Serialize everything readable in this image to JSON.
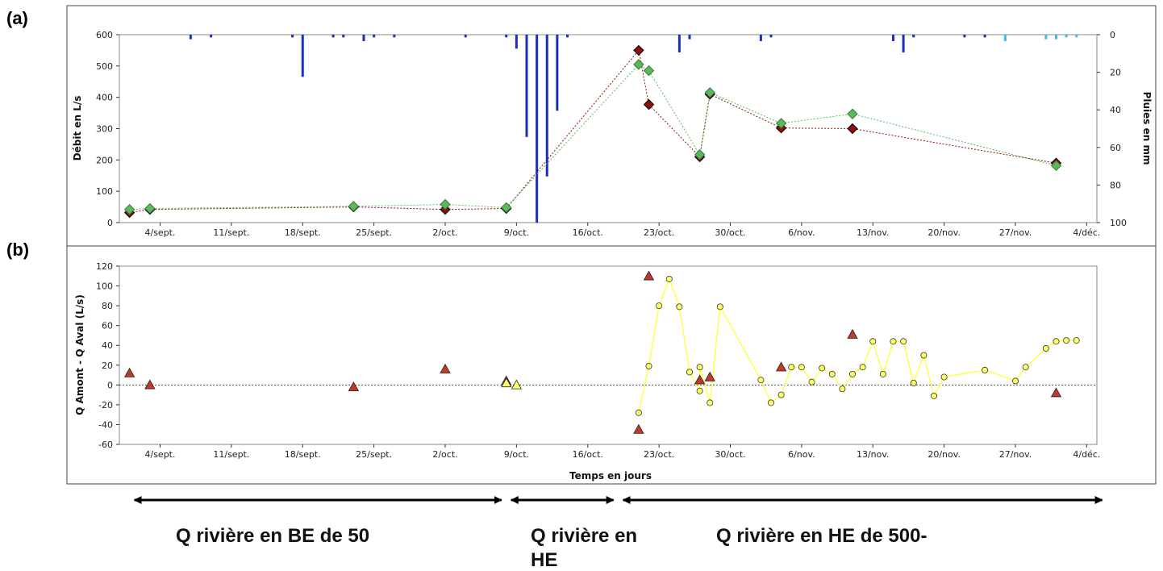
{
  "panel_labels": {
    "a": "(a)",
    "b": "(b)"
  },
  "chart_data": [
    {
      "type": "line",
      "panel": "a",
      "ylabel": "Débit en L/s",
      "ylabel_right": "Pluies en mm",
      "ylim": [
        0,
        600
      ],
      "yticks": [
        "0",
        "100",
        "200",
        "300",
        "400",
        "500",
        "600"
      ],
      "y2lim": [
        0,
        100
      ],
      "y2ticks": [
        "0",
        "20",
        "40",
        "60",
        "80",
        "100"
      ],
      "y2_inverted": true,
      "xlim": [
        "2017-08-31",
        "2017-12-05"
      ],
      "xticks": [
        {
          "date": "2017-09-04",
          "label": "4/sept."
        },
        {
          "date": "2017-09-11",
          "label": "11/sept."
        },
        {
          "date": "2017-09-18",
          "label": "18/sept."
        },
        {
          "date": "2017-09-25",
          "label": "25/sept."
        },
        {
          "date": "2017-10-02",
          "label": "2/oct."
        },
        {
          "date": "2017-10-09",
          "label": "9/oct."
        },
        {
          "date": "2017-10-16",
          "label": "16/oct."
        },
        {
          "date": "2017-10-23",
          "label": "23/oct."
        },
        {
          "date": "2017-10-30",
          "label": "30/oct."
        },
        {
          "date": "2017-11-06",
          "label": "6/nov."
        },
        {
          "date": "2017-11-13",
          "label": "13/nov."
        },
        {
          "date": "2017-11-20",
          "label": "20/nov."
        },
        {
          "date": "2017-11-27",
          "label": "27/nov."
        },
        {
          "date": "2017-12-04",
          "label": "4/déc."
        }
      ],
      "series": [
        {
          "color": "#8b1010",
          "marker": "diamond",
          "points": [
            [
              "2017-09-01",
              32
            ],
            [
              "2017-09-03",
              42
            ],
            [
              "2017-09-23",
              50
            ],
            [
              "2017-10-02",
              42
            ],
            [
              "2017-10-08",
              45
            ],
            [
              "2017-10-21",
              550
            ],
            [
              "2017-10-22",
              377
            ],
            [
              "2017-10-27",
              210
            ],
            [
              "2017-10-28",
              410
            ],
            [
              "2017-11-04",
              302
            ],
            [
              "2017-11-11",
              300
            ],
            [
              "2017-12-01",
              190
            ]
          ]
        },
        {
          "color": "#5cb85c",
          "marker": "diamond",
          "points": [
            [
              "2017-09-01",
              42
            ],
            [
              "2017-09-03",
              45
            ],
            [
              "2017-09-23",
              52
            ],
            [
              "2017-10-02",
              58
            ],
            [
              "2017-10-08",
              48
            ],
            [
              "2017-10-21",
              505
            ],
            [
              "2017-10-22",
              485
            ],
            [
              "2017-10-27",
              217
            ],
            [
              "2017-10-28",
              415
            ],
            [
              "2017-11-04",
              317
            ],
            [
              "2017-11-11",
              347
            ],
            [
              "2017-12-01",
              182
            ]
          ]
        }
      ],
      "rain_bars": [
        [
          "2017-09-07",
          2
        ],
        [
          "2017-09-09",
          1
        ],
        [
          "2017-09-17",
          1
        ],
        [
          "2017-09-18",
          22
        ],
        [
          "2017-09-21",
          1
        ],
        [
          "2017-09-22",
          1
        ],
        [
          "2017-09-24",
          3
        ],
        [
          "2017-09-25",
          1
        ],
        [
          "2017-09-27",
          1
        ],
        [
          "2017-10-04",
          1
        ],
        [
          "2017-10-08",
          1
        ],
        [
          "2017-10-09",
          7
        ],
        [
          "2017-10-10",
          54
        ],
        [
          "2017-10-11",
          100
        ],
        [
          "2017-10-12",
          75
        ],
        [
          "2017-10-13",
          40
        ],
        [
          "2017-10-14",
          1
        ],
        [
          "2017-10-25",
          9
        ],
        [
          "2017-10-26",
          2
        ],
        [
          "2017-11-02",
          3
        ],
        [
          "2017-11-03",
          1
        ],
        [
          "2017-11-15",
          3
        ],
        [
          "2017-11-16",
          9
        ],
        [
          "2017-11-17",
          1
        ],
        [
          "2017-11-22",
          1
        ],
        [
          "2017-11-24",
          1
        ]
      ],
      "rain_bars_light": [
        [
          "2017-11-26",
          3
        ],
        [
          "2017-11-30",
          2
        ],
        [
          "2017-12-01",
          2
        ],
        [
          "2017-12-02",
          1
        ],
        [
          "2017-12-03",
          1
        ]
      ],
      "colors": {
        "rain": "#1b2fbf",
        "rain_light": "#41b8e8"
      }
    },
    {
      "type": "scatter",
      "panel": "b",
      "xlabel": "Temps en jours",
      "ylabel": "Q Amont - Q Aval (L/s)",
      "ylim": [
        -60,
        120
      ],
      "yticks": [
        "-60",
        "-40",
        "-20",
        "0",
        "20",
        "40",
        "60",
        "80",
        "100",
        "120"
      ],
      "xlim": [
        "2017-08-31",
        "2017-12-05"
      ],
      "xticks": [
        {
          "date": "2017-09-04",
          "label": "4/sept."
        },
        {
          "date": "2017-09-11",
          "label": "11/sept."
        },
        {
          "date": "2017-09-18",
          "label": "18/sept."
        },
        {
          "date": "2017-09-25",
          "label": "25/sept."
        },
        {
          "date": "2017-10-02",
          "label": "2/oct."
        },
        {
          "date": "2017-10-09",
          "label": "9/oct."
        },
        {
          "date": "2017-10-16",
          "label": "16/oct."
        },
        {
          "date": "2017-10-23",
          "label": "23/oct."
        },
        {
          "date": "2017-10-30",
          "label": "30/oct."
        },
        {
          "date": "2017-11-06",
          "label": "6/nov."
        },
        {
          "date": "2017-11-13",
          "label": "13/nov."
        },
        {
          "date": "2017-11-20",
          "label": "20/nov."
        },
        {
          "date": "2017-11-27",
          "label": "27/nov."
        },
        {
          "date": "2017-12-04",
          "label": "4/déc."
        }
      ],
      "series": [
        {
          "color": "#c0392b",
          "marker": "triangle",
          "points": [
            [
              "2017-09-01",
              12
            ],
            [
              "2017-09-03",
              0
            ],
            [
              "2017-09-23",
              -2
            ],
            [
              "2017-10-02",
              16
            ],
            [
              "2017-10-08",
              4
            ],
            [
              "2017-10-21",
              -45
            ],
            [
              "2017-10-22",
              110
            ],
            [
              "2017-10-27",
              5
            ],
            [
              "2017-10-28",
              8
            ],
            [
              "2017-11-04",
              18
            ],
            [
              "2017-11-11",
              51
            ],
            [
              "2017-12-01",
              -8
            ]
          ]
        },
        {
          "color": "#ffff66",
          "marker": "circle",
          "line": true,
          "points": [
            [
              "2017-10-21",
              -28
            ],
            [
              "2017-10-22",
              19
            ],
            [
              "2017-10-23",
              80
            ],
            [
              "2017-10-24",
              107
            ],
            [
              "2017-10-25",
              79
            ],
            [
              "2017-10-26",
              13
            ],
            [
              "2017-10-27",
              -6
            ],
            [
              "2017-10-27",
              18
            ],
            [
              "2017-10-28",
              -18
            ],
            [
              "2017-10-29",
              79
            ],
            [
              "2017-11-02",
              5
            ],
            [
              "2017-11-03",
              -18
            ],
            [
              "2017-11-04",
              -10
            ],
            [
              "2017-11-05",
              18
            ],
            [
              "2017-11-06",
              18
            ],
            [
              "2017-11-07",
              3
            ],
            [
              "2017-11-08",
              17
            ],
            [
              "2017-11-09",
              11
            ],
            [
              "2017-11-10",
              -4
            ],
            [
              "2017-11-11",
              11
            ],
            [
              "2017-11-12",
              18
            ],
            [
              "2017-11-13",
              44
            ],
            [
              "2017-11-14",
              11
            ],
            [
              "2017-11-15",
              44
            ],
            [
              "2017-11-16",
              44
            ],
            [
              "2017-11-17",
              2
            ],
            [
              "2017-11-18",
              30
            ],
            [
              "2017-11-19",
              -11
            ],
            [
              "2017-11-20",
              8
            ],
            [
              "2017-11-24",
              15
            ],
            [
              "2017-11-27",
              4
            ],
            [
              "2017-11-28",
              18
            ],
            [
              "2017-11-30",
              37
            ],
            [
              "2017-12-01",
              44
            ],
            [
              "2017-12-02",
              45
            ],
            [
              "2017-12-03",
              45
            ]
          ]
        },
        {
          "color": "#ffff66",
          "marker": "triangle",
          "points": [
            [
              "2017-10-08",
              2
            ],
            [
              "2017-10-09",
              0
            ]
          ]
        }
      ],
      "zero_line": true
    }
  ],
  "phases": [
    {
      "label": "Q rivière en BE de 50",
      "start": "2017-09-01",
      "end": "2017-10-08"
    },
    {
      "label_line1": "Q rivière en",
      "label_line2": "HE",
      "start": "2017-10-08",
      "end": "2017-10-19"
    },
    {
      "label": "Q rivière en HE de 500-",
      "start": "2017-10-19",
      "end": "2017-12-06"
    }
  ]
}
